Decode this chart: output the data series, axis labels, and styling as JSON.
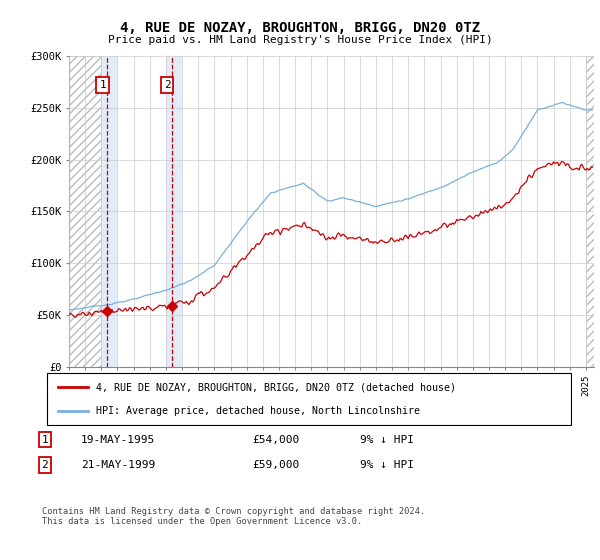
{
  "title": "4, RUE DE NOZAY, BROUGHTON, BRIGG, DN20 0TZ",
  "subtitle": "Price paid vs. HM Land Registry's House Price Index (HPI)",
  "legend_line1": "4, RUE DE NOZAY, BROUGHTON, BRIGG, DN20 0TZ (detached house)",
  "legend_line2": "HPI: Average price, detached house, North Lincolnshire",
  "footer": "Contains HM Land Registry data © Crown copyright and database right 2024.\nThis data is licensed under the Open Government Licence v3.0.",
  "transaction1_date": "19-MAY-1995",
  "transaction1_price": "£54,000",
  "transaction1_hpi": "9% ↓ HPI",
  "transaction2_date": "21-MAY-1999",
  "transaction2_price": "£59,000",
  "transaction2_hpi": "9% ↓ HPI",
  "transaction1_x": 1995.38,
  "transaction1_y": 54000,
  "transaction2_x": 1999.38,
  "transaction2_y": 59000,
  "ylim": [
    0,
    300000
  ],
  "xlim_start": 1993,
  "xlim_end": 2025.5,
  "hpi_color": "#7ab0dc",
  "price_color": "#cc0000",
  "background_color": "#ffffff",
  "grid_color": "#cccccc",
  "hatch_region_left_end": 1995.0,
  "hatch_region_right_start": 2025.0,
  "span1_start": 1995.0,
  "span1_end": 1996.0,
  "span2_start": 1999.0,
  "span2_end": 2000.0
}
